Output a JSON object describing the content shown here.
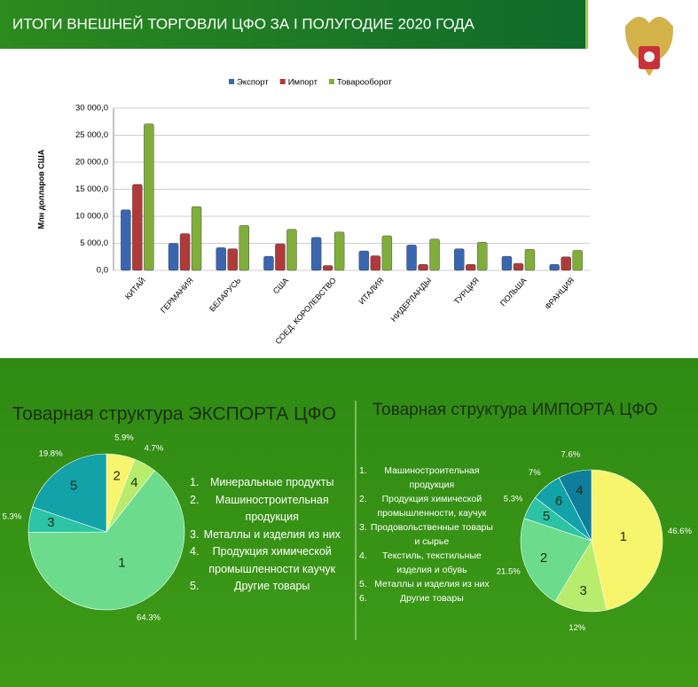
{
  "header": {
    "title": "ИТОГИ ВНЕШНЕЙ ТОРГОВЛИ ЦФО ЗА I ПОЛУГОДИЕ 2020 ГОДА"
  },
  "chart_data": [
    {
      "type": "bar",
      "ylabel": "Млн  долларов США",
      "categories": [
        "КИТАЙ",
        "ГЕРМАНИЯ",
        "БЕЛАРУСЬ",
        "США",
        "СОЕД. КОРОЛЕВСТВО",
        "ИТАЛИЯ",
        "НИДЕРЛАНДЫ",
        "ТУРЦИЯ",
        "ПОЛЬША",
        "ФРАНЦИЯ"
      ],
      "series": [
        {
          "name": "Экспорт",
          "color": "#3a66b0",
          "values": [
            11200,
            5000,
            4200,
            2600,
            6100,
            3600,
            4700,
            4000,
            2600,
            1100
          ]
        },
        {
          "name": "Импорт",
          "color": "#b03a3a",
          "values": [
            15900,
            6800,
            4000,
            4900,
            900,
            2700,
            1100,
            1100,
            1300,
            2500
          ]
        },
        {
          "name": "Товарооборот",
          "color": "#7fae3a",
          "values": [
            27100,
            11800,
            8300,
            7600,
            7100,
            6400,
            5800,
            5200,
            3900,
            3700
          ]
        }
      ],
      "ylim": [
        0,
        30000
      ],
      "yticks": [
        {
          "value": 0,
          "label": "0,0"
        },
        {
          "value": 5000,
          "label": "5 000,0"
        },
        {
          "value": 10000,
          "label": "10 000,0"
        },
        {
          "value": 15000,
          "label": "15 000,0"
        },
        {
          "value": 20000,
          "label": "20 000,0"
        },
        {
          "value": 25000,
          "label": "25 000,0"
        },
        {
          "value": 30000,
          "label": "30 000,0"
        }
      ],
      "grid": true,
      "legend": "top"
    },
    {
      "type": "pie",
      "title": "Товарная структура ЭКСПОРТА ЦФО",
      "labels": [
        "2",
        "4",
        "1",
        "3",
        "5"
      ],
      "values": [
        5.9,
        4.7,
        64.3,
        5.3,
        19.8
      ],
      "value_labels": [
        "5.9%",
        "4.7%",
        "64.3%",
        "5.3%",
        "19.8%"
      ],
      "colors": [
        "#f7f56c",
        "#b8ec6c",
        "#6cdc8c",
        "#2cc4a4",
        "#12a2a8"
      ],
      "legend": [
        {
          "marker": "1.",
          "text": "Минеральные продукты"
        },
        {
          "marker": "2.",
          "text": "Машиностроительная продукция"
        },
        {
          "marker": "3.",
          "text": "Металлы и изделия из них"
        },
        {
          "marker": "4.",
          "text": "Продукция химической промышленности каучук"
        },
        {
          "marker": "5.",
          "text": "Другие товары"
        }
      ]
    },
    {
      "type": "pie",
      "title": "Товарная структура ИМПОРТА ЦФО",
      "labels": [
        "1",
        "3",
        "2",
        "5",
        "6",
        "4"
      ],
      "values": [
        46.6,
        12,
        21.5,
        5.3,
        7,
        7.6
      ],
      "value_labels": [
        "46.6%",
        "12%",
        "21.5%",
        "5.3%",
        "7%",
        "7.6%"
      ],
      "colors": [
        "#f7f56c",
        "#b8ec6c",
        "#6cdc8c",
        "#2cc4a4",
        "#12a2a8",
        "#0e7e9c"
      ],
      "legend": [
        {
          "marker": "1.",
          "text": "Машиностроительная продукция"
        },
        {
          "marker": "2.",
          "text": "Продукция химической промышленности, каучук"
        },
        {
          "marker": "3.",
          "text": "Продовольственные товары и сырье"
        },
        {
          "marker": "4.",
          "text": "Текстиль, текстильные изделия и обувь"
        },
        {
          "marker": "5.",
          "text": "Металлы и изделия из них"
        },
        {
          "marker": "6.",
          "text": "Другие товары"
        }
      ]
    }
  ]
}
